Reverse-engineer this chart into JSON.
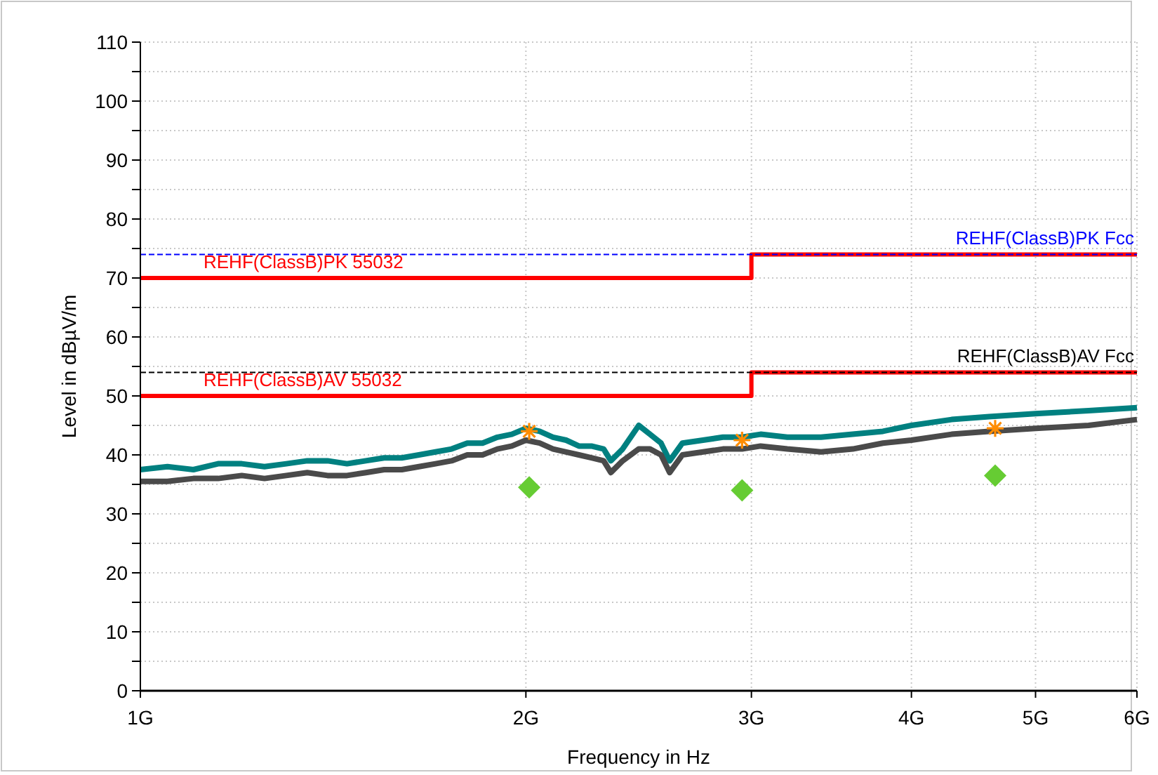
{
  "chart_data": {
    "type": "line",
    "xlabel": "Frequency in Hz",
    "ylabel": "Level in dBµV/m",
    "log": "x",
    "grid": true,
    "legend": false,
    "xlim": [
      1,
      6
    ],
    "xticks": [
      {
        "value": 1,
        "label": "1G"
      },
      {
        "value": 2,
        "label": "2G"
      },
      {
        "value": 3,
        "label": "3G"
      },
      {
        "value": 4,
        "label": "4G"
      },
      {
        "value": 5,
        "label": "5G"
      },
      {
        "value": 6,
        "label": "6G"
      }
    ],
    "ylim": [
      0,
      110
    ],
    "yticks": [
      0,
      {
        "value": 5,
        "label": null
      },
      10,
      {
        "value": 15,
        "label": null
      },
      20,
      {
        "value": 25,
        "label": null
      },
      30,
      {
        "value": 35,
        "label": null
      },
      40,
      {
        "value": 45,
        "label": null
      },
      50,
      {
        "value": 55,
        "label": null
      },
      60,
      {
        "value": 65,
        "label": null
      },
      70,
      {
        "value": 75,
        "label": null
      },
      80,
      {
        "value": 85,
        "label": null
      },
      90,
      {
        "value": 95,
        "label": null
      },
      100,
      {
        "value": 105,
        "label": null
      },
      110
    ],
    "series": [
      {
        "type": "line",
        "color": "#008080",
        "line_style": "solid",
        "marker": "none",
        "x": [
          1,
          1.05,
          1.1,
          1.15,
          1.2,
          1.25,
          1.3,
          1.35,
          1.4,
          1.45,
          1.5,
          1.55,
          1.6,
          1.65,
          1.7,
          1.75,
          1.8,
          1.85,
          1.9,
          1.95,
          2,
          2.05,
          2.1,
          2.15,
          2.2,
          2.25,
          2.3,
          2.33,
          2.38,
          2.45,
          2.5,
          2.55,
          2.59,
          2.65,
          2.75,
          2.85,
          2.95,
          3.05,
          3.2,
          3.4,
          3.6,
          3.8,
          4,
          4.3,
          4.6,
          5,
          5.5,
          6
        ],
        "values": [
          37.5,
          38,
          37.5,
          38.5,
          38.5,
          38,
          38.5,
          39,
          39,
          38.5,
          39,
          39.5,
          39.5,
          40,
          40.5,
          41,
          42,
          42,
          43,
          43.5,
          44.5,
          44,
          43,
          42.5,
          41.5,
          41.5,
          41,
          39,
          41,
          45,
          43.5,
          42,
          39,
          42,
          42.5,
          43,
          43,
          43.5,
          43,
          43,
          43.5,
          44,
          45,
          46,
          46.5,
          47,
          47.5,
          48
        ]
      },
      {
        "type": "line",
        "color": "#4a4a4a",
        "line_style": "solid",
        "marker": "none",
        "x": [
          1,
          1.05,
          1.1,
          1.15,
          1.2,
          1.25,
          1.3,
          1.35,
          1.4,
          1.45,
          1.5,
          1.55,
          1.6,
          1.65,
          1.7,
          1.75,
          1.8,
          1.85,
          1.9,
          1.95,
          2,
          2.05,
          2.1,
          2.15,
          2.2,
          2.25,
          2.3,
          2.33,
          2.38,
          2.45,
          2.5,
          2.55,
          2.59,
          2.65,
          2.75,
          2.85,
          2.95,
          3.05,
          3.2,
          3.4,
          3.6,
          3.8,
          4,
          4.3,
          4.6,
          5,
          5.5,
          6
        ],
        "values": [
          35.5,
          35.5,
          36,
          36,
          36.5,
          36,
          36.5,
          37,
          36.5,
          36.5,
          37,
          37.5,
          37.5,
          38,
          38.5,
          39,
          40,
          40,
          41,
          41.5,
          42.5,
          42,
          41,
          40.5,
          40,
          39.5,
          39,
          37,
          39,
          41,
          41,
          40,
          37,
          40,
          40.5,
          41,
          41,
          41.5,
          41,
          40.5,
          41,
          42,
          42.5,
          43.5,
          44,
          44.5,
          45,
          46
        ]
      },
      {
        "type": "line",
        "name": "REHF(ClassB)PK 55032",
        "color": "#ff0000",
        "line_style": "solid",
        "marker": "none",
        "x": [
          1,
          3,
          3,
          6
        ],
        "values": [
          70,
          70,
          74,
          74
        ]
      },
      {
        "type": "line",
        "name": "REHF(ClassB)AV 55032",
        "color": "#ff0000",
        "line_style": "solid",
        "marker": "none",
        "x": [
          1,
          3,
          3,
          6
        ],
        "values": [
          50,
          50,
          54,
          54
        ]
      },
      {
        "type": "line",
        "name": "REHF(ClassB)PK Fcc",
        "color": "#0000ff",
        "line_style": "dashed",
        "marker": "none",
        "x": [
          1,
          6
        ],
        "values": [
          74,
          74
        ]
      },
      {
        "type": "line",
        "name": "REHF(ClassB)AV Fcc",
        "color": "#000000",
        "line_style": "dashed",
        "marker": "none",
        "x": [
          1,
          6
        ],
        "values": [
          54,
          54
        ]
      },
      {
        "type": "scatter",
        "color": "#ff8c00",
        "marker": "cross",
        "x": [
          2.012,
          2.95,
          4.65
        ],
        "values": [
          44,
          42.5,
          44.5
        ]
      },
      {
        "type": "scatter",
        "color": "#66cc33",
        "marker": "diamond",
        "x": [
          2.012,
          2.95,
          4.65
        ],
        "values": [
          34.5,
          34,
          36.5
        ]
      }
    ]
  }
}
